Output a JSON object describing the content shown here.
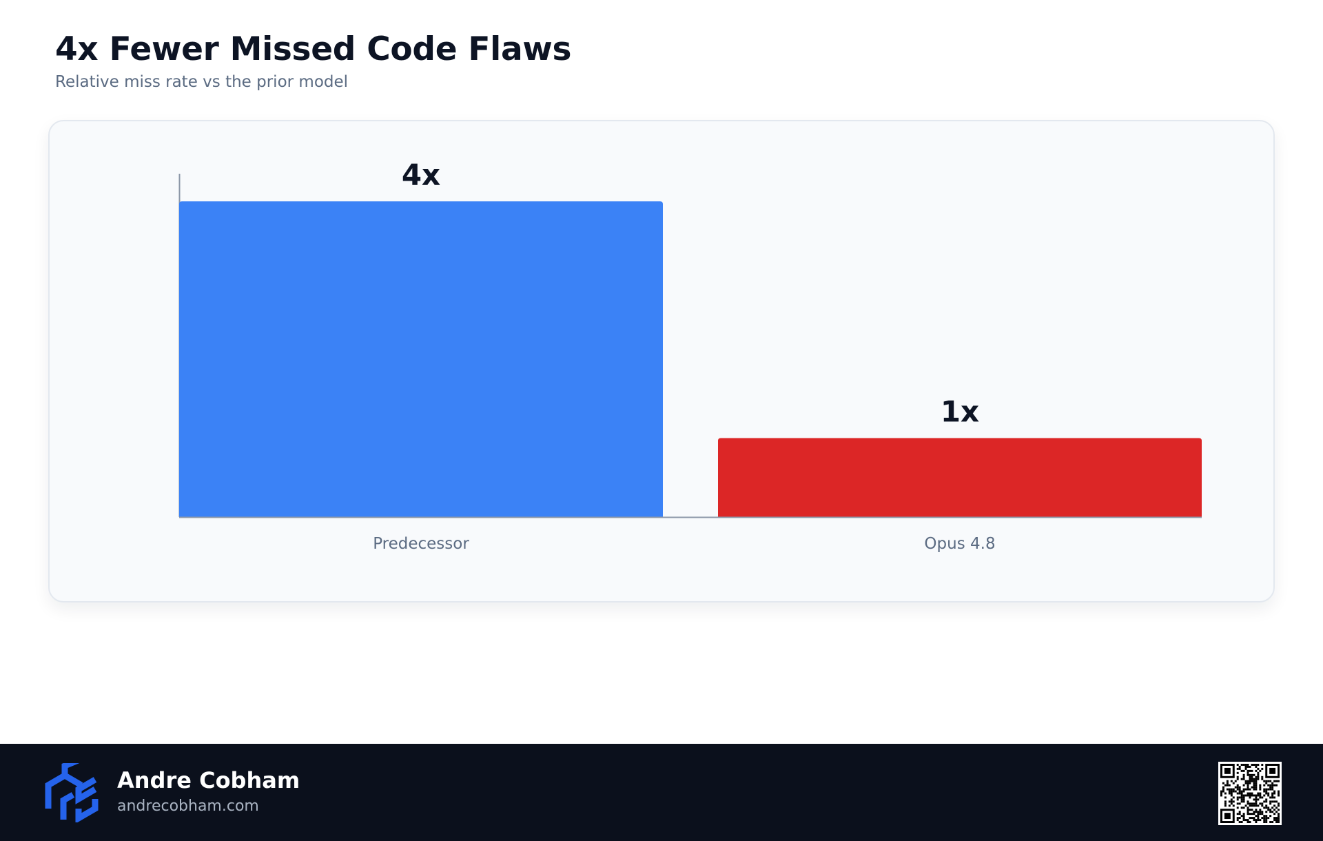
{
  "header": {
    "title": "4x Fewer Missed Code Flaws",
    "subtitle": "Relative miss rate vs the prior model"
  },
  "chart_data": {
    "type": "bar",
    "categories": [
      "Predecessor",
      "Opus 4.8"
    ],
    "values": [
      4,
      1
    ],
    "data_labels": [
      "4x",
      "1x"
    ],
    "colors": [
      "#3b82f6",
      "#dc2626"
    ],
    "ylim": [
      0,
      4.35
    ],
    "grid": false,
    "legend": "none"
  },
  "footer": {
    "name": "Andre Cobham",
    "url": "andrecobham.com",
    "logo_icon": "cube-logo-icon",
    "qr_icon": "qr-code-icon",
    "background": "#0b101c",
    "logo_color": "#2563eb"
  }
}
